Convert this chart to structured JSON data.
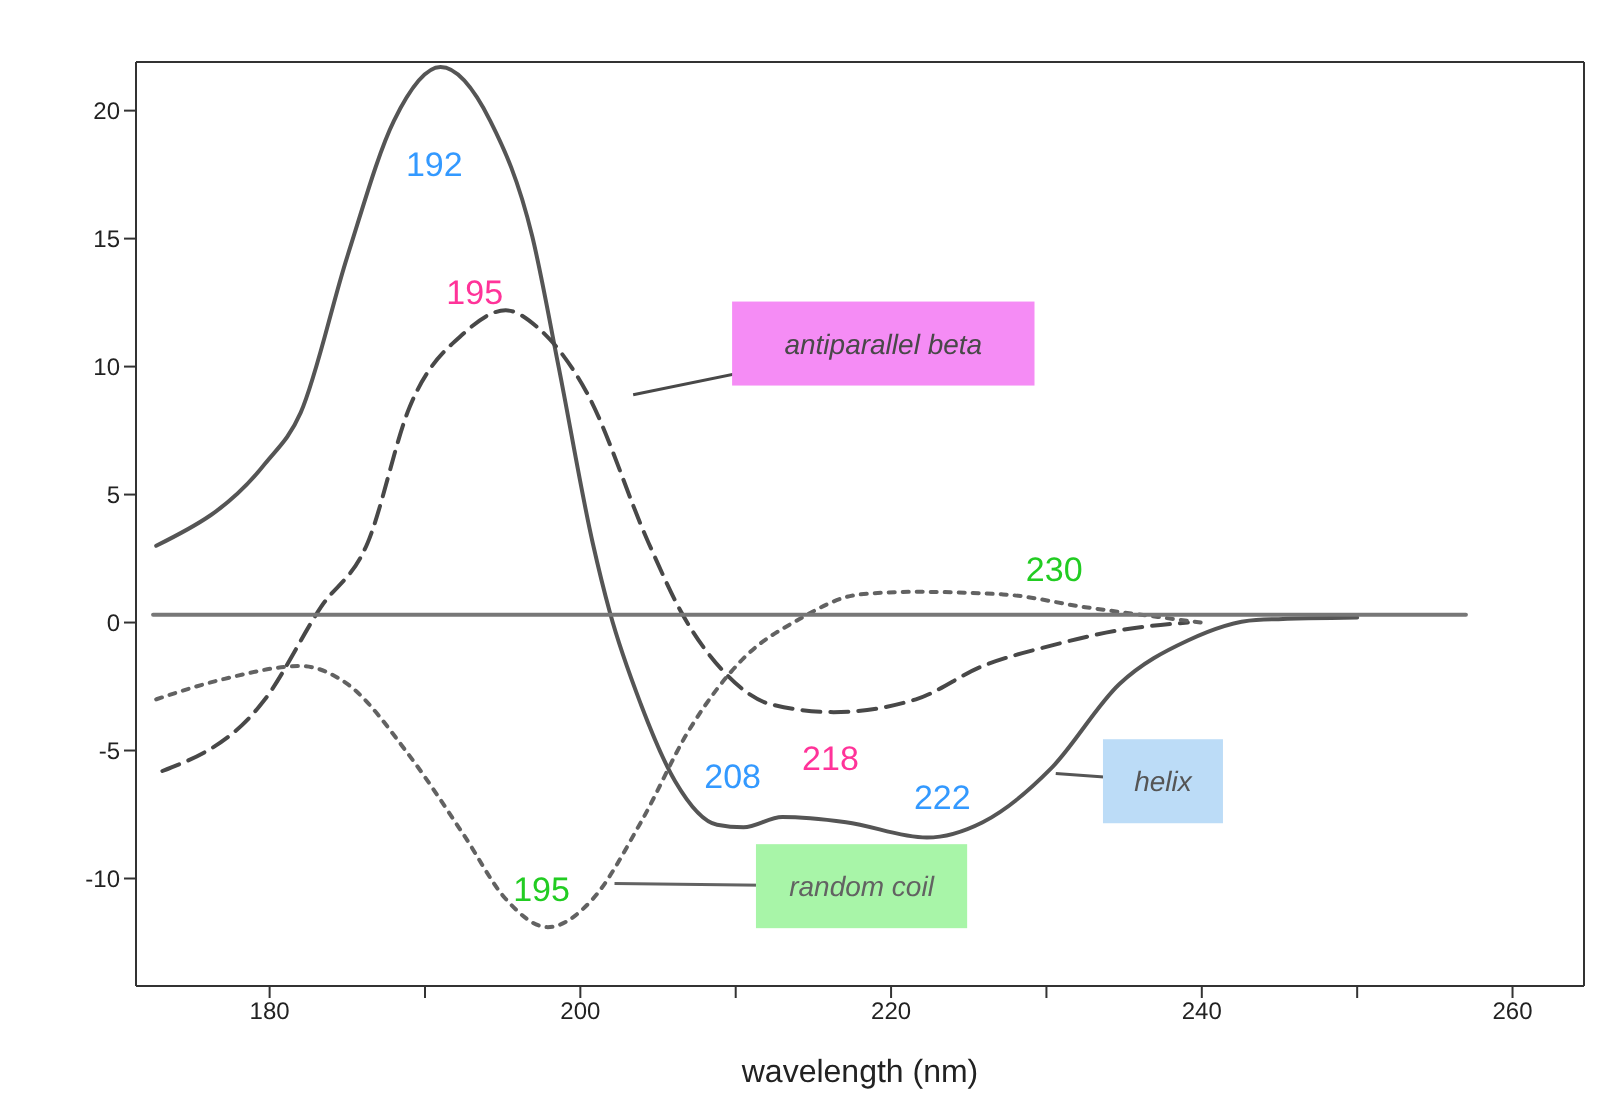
{
  "chart_data": {
    "type": "line",
    "xlabel": "wavelength (nm)",
    "xlim": [
      171.4,
      264.6
    ],
    "xticks": [
      180,
      {
        "value": 190,
        "label": null
      },
      200,
      {
        "value": 210,
        "label": null
      },
      220,
      {
        "value": 230,
        "label": null
      },
      240,
      {
        "value": 250,
        "label": null
      },
      260
    ],
    "ylim": [
      -14.2,
      21.9
    ],
    "yticks": [
      -10,
      -5,
      0,
      5,
      10,
      15,
      20
    ],
    "marker": "none",
    "series": [
      {
        "name": "helix",
        "color": "#555555",
        "line_style": "solid",
        "x": [
          172.7,
          179.7,
          182,
          185,
          188,
          191,
          194.2,
          196.9,
          198.6,
          200.8,
          201.9,
          203.9,
          206.1,
          208.8,
          210.5,
          213,
          217.1,
          222.3,
          225.9,
          230.3,
          234.7,
          239.1,
          243.5,
          250
        ],
        "values": [
          3.0,
          6.2,
          8.2,
          14.3,
          19.6,
          21.7,
          19.6,
          15.1,
          10,
          3.1,
          0.4,
          -3.2,
          -6.2,
          -7.9,
          -8.0,
          -7.6,
          -7.8,
          -8.4,
          -7.8,
          -5.7,
          -2.4,
          -0.7,
          0.1,
          0.2
        ]
      },
      {
        "name": "antiparallel beta",
        "color": "#484848",
        "line_style": "dashed",
        "x": [
          173.1,
          179.7,
          183.3,
          186.3,
          189,
          192.5,
          195.2,
          197.3,
          200.4,
          204.4,
          206.5,
          209.2,
          212.3,
          216.3,
          221.6,
          225.9,
          230.3,
          234.7,
          239.1
        ],
        "values": [
          -5.8,
          -3.0,
          0.6,
          3.1,
          8.4,
          11.3,
          12.2,
          11.5,
          9.0,
          3.1,
          0.4,
          -1.9,
          -3.2,
          -3.5,
          -3.0,
          -1.7,
          -0.9,
          -0.3,
          0
        ]
      },
      {
        "name": "random coil",
        "color": "#626262",
        "line_style": "dotted",
        "x": [
          172.7,
          177.1,
          182,
          185,
          189,
          192.5,
          195.2,
          197.9,
          200.8,
          203.9,
          207,
          210.5,
          214,
          218,
          221.6,
          227.2,
          232.5,
          237.4,
          240
        ],
        "values": [
          -3.0,
          -2.2,
          -1.7,
          -2.4,
          -5.2,
          -8.3,
          -10.8,
          -11.9,
          -10.8,
          -7.8,
          -4.2,
          -1.4,
          0.1,
          1.1,
          1.2,
          1.1,
          0.6,
          0.2,
          0
        ]
      },
      {
        "color": "#777777",
        "line_style": "solid",
        "x": [
          172.5,
          257
        ],
        "values": [
          0.3,
          0.3
        ]
      }
    ],
    "annotations": [
      "192",
      "195",
      "195",
      "208",
      "218",
      "222",
      "230"
    ]
  }
}
